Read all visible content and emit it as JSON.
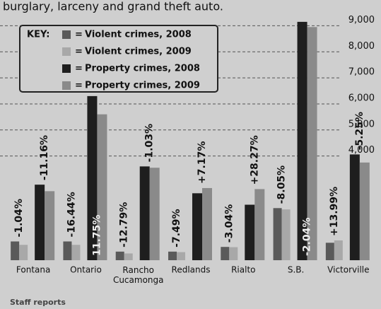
{
  "chart_data": {
    "type": "bar",
    "title": "burglary, larceny and grand theft auto.",
    "legend_key": "KEY:",
    "legend_separator": "=",
    "source": "Staff reports",
    "categories": [
      "Fontana",
      "Ontario",
      "Rancho Cucamonga",
      "Redlands",
      "Rialto",
      "S.B.",
      "Victorville"
    ],
    "series": [
      {
        "name": "Violent crimes, 2008",
        "color": "#5a5a5a",
        "values": [
          720,
          720,
          330,
          330,
          510,
          2000,
          670
        ]
      },
      {
        "name": "Violent crimes, 2009",
        "color": "#a8a8a8",
        "values": [
          590,
          590,
          260,
          310,
          500,
          1950,
          760
        ]
      },
      {
        "name": "Property crimes, 2008",
        "color": "#1e1e1e",
        "values": [
          2900,
          6300,
          3600,
          2570,
          2130,
          9150,
          4060
        ]
      },
      {
        "name": "Property crimes, 2009",
        "color": "#8a8a8a",
        "values": [
          2650,
          5600,
          3550,
          2770,
          2730,
          8950,
          3750
        ]
      }
    ],
    "violent_change": [
      "-1.04%",
      "-16.44%",
      "-12.79%",
      "-7.49%",
      "-3.04%",
      "-8.05%",
      "+13.99%"
    ],
    "property_change": [
      "-11.16%",
      "11.75%",
      "-1.03%",
      "+7.17%",
      "+28.27%",
      "-2.04%",
      "-5.25%"
    ],
    "ylim": [
      0,
      9500
    ],
    "yticks": [
      {
        "value": 4000,
        "label": "4,000"
      },
      {
        "value": 5000,
        "label": "5,000"
      },
      {
        "value": 6000,
        "label": "6,000"
      },
      {
        "value": 7000,
        "label": "7,000"
      },
      {
        "value": 8000,
        "label": "8,000"
      },
      {
        "value": 9000,
        "label": "9,000"
      }
    ],
    "grid": true
  }
}
